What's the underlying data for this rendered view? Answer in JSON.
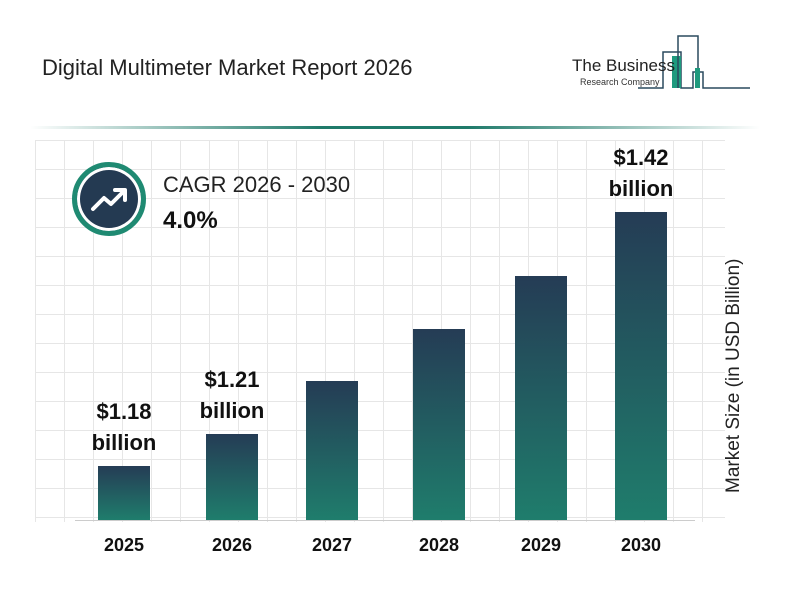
{
  "header": {
    "title": "Digital Multimeter Market Report 2026",
    "logo_line1": "The Business",
    "logo_line2": "Research Company"
  },
  "cagr": {
    "label": "CAGR 2026 - 2030",
    "value": "4.0%",
    "icon": "trending-up-icon"
  },
  "colors": {
    "bar_top": "#253c55",
    "bar_bottom": "#1f7d6c",
    "accent": "#1f8a72"
  },
  "chart_data": {
    "type": "bar",
    "title": "Digital Multimeter Market Report 2026",
    "ylabel": "Market Size (in USD Billion)",
    "xlabel": "",
    "grid": true,
    "categories": [
      "2025",
      "2026",
      "2027",
      "2028",
      "2029",
      "2030"
    ],
    "values": [
      1.18,
      1.21,
      1.26,
      1.31,
      1.36,
      1.42
    ],
    "data_labels": [
      [
        "$1.18",
        "billion"
      ],
      [
        "$1.21",
        "billion"
      ],
      null,
      null,
      null,
      [
        "$1.42",
        "billion"
      ]
    ]
  }
}
